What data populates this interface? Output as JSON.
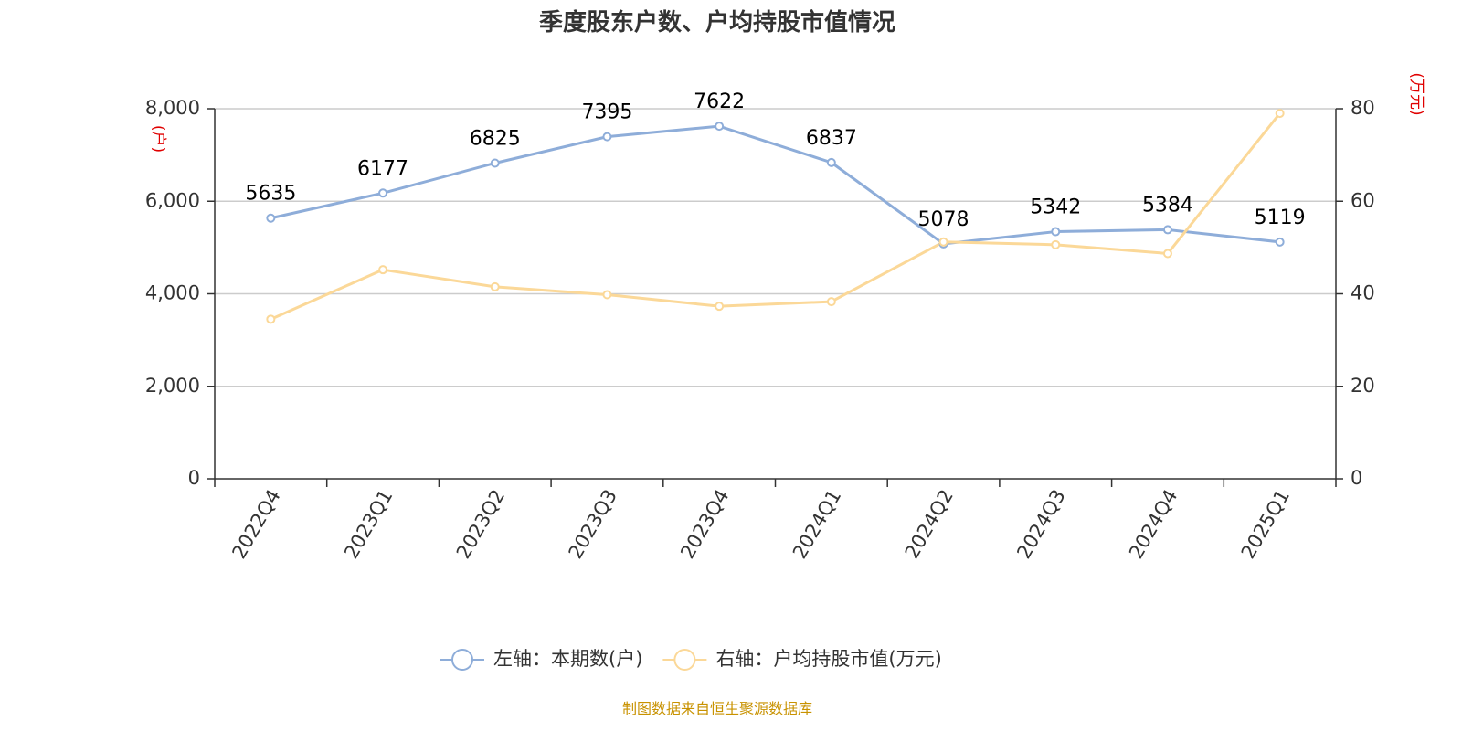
{
  "chart_data": {
    "type": "line",
    "title": "季度股东户数、户均持股市值情况",
    "categories": [
      "2022Q4",
      "2023Q1",
      "2023Q2",
      "2023Q3",
      "2023Q4",
      "2024Q1",
      "2024Q2",
      "2024Q3",
      "2024Q4",
      "2025Q1"
    ],
    "left_axis": {
      "unit": "(户)",
      "ylim": [
        0,
        8000
      ],
      "ticks": [
        0,
        2000,
        4000,
        6000,
        8000
      ],
      "tick_labels": [
        "0",
        "2,000",
        "4,000",
        "6,000",
        "8,000"
      ]
    },
    "right_axis": {
      "unit": "(万元)",
      "ylim": [
        0,
        80
      ],
      "ticks": [
        0,
        20,
        40,
        60,
        80
      ],
      "tick_labels": [
        "0",
        "20",
        "40",
        "60",
        "80"
      ]
    },
    "series": [
      {
        "name": "左轴：本期数(户)",
        "axis": "left",
        "color": "#8eadd9",
        "values": [
          5635,
          6177,
          6825,
          7395,
          7622,
          6837,
          5078,
          5342,
          5384,
          5119
        ],
        "labels": [
          "5635",
          "6177",
          "6825",
          "7395",
          "7622",
          "6837",
          "5078",
          "5342",
          "5384",
          "5119"
        ]
      },
      {
        "name": "右轴：户均持股市值(万元)",
        "axis": "right",
        "color": "#fbd898",
        "values": [
          34.5,
          45.2,
          41.5,
          39.8,
          37.3,
          38.3,
          51.2,
          50.6,
          48.7,
          79.0
        ]
      }
    ],
    "grid": true,
    "legend_position": "bottom-center"
  },
  "source_text": "制图数据来自恒生聚源数据库"
}
